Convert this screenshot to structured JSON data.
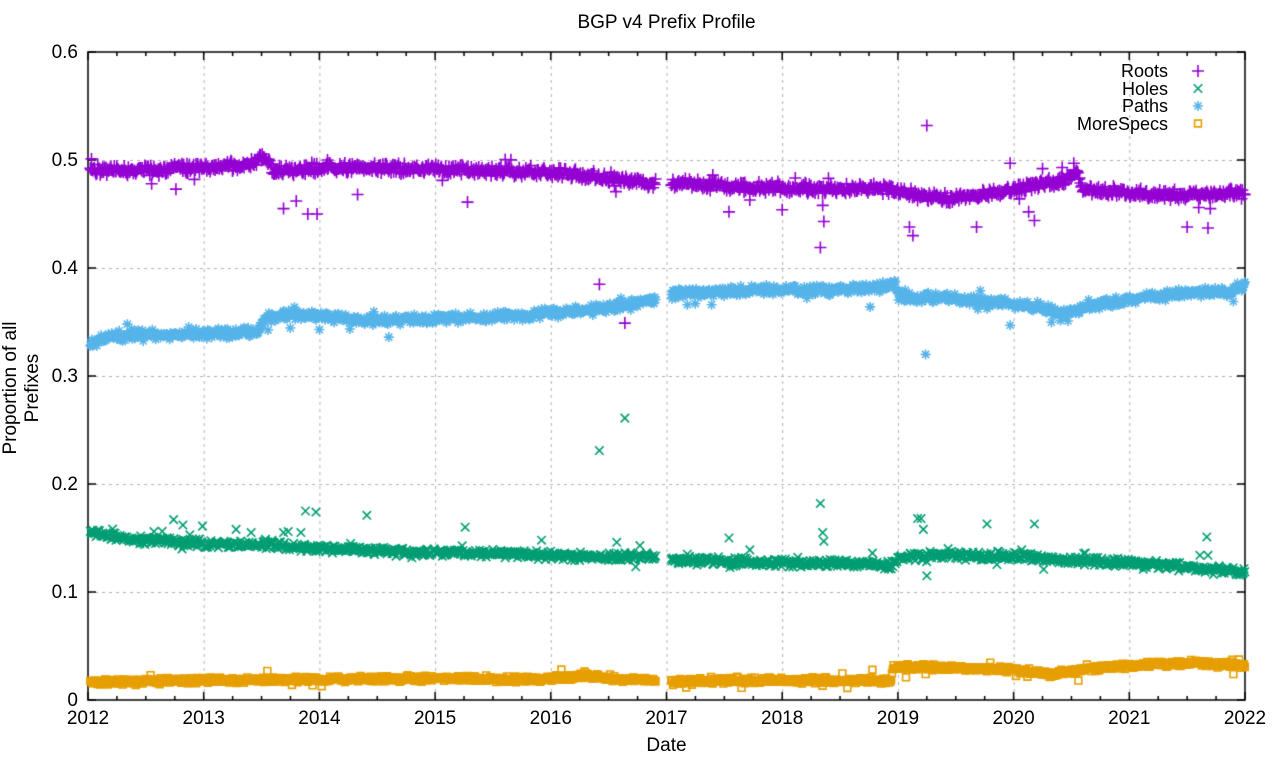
{
  "title": "BGP v4 Prefix Profile",
  "axes": {
    "xlabel": "Date",
    "ylabel": "Proportion of all Prefixes",
    "x_ticks": [
      "2012",
      "2013",
      "2014",
      "2015",
      "2016",
      "2017",
      "2018",
      "2019",
      "2020",
      "2021",
      "2022"
    ],
    "y_ticks": [
      "0",
      "0.1",
      "0.2",
      "0.3",
      "0.4",
      "0.5",
      "0.6"
    ]
  },
  "legend": {
    "position": "top-right",
    "entries": [
      {
        "label": "Roots",
        "marker": "plus",
        "color": "#9400d3"
      },
      {
        "label": "Holes",
        "marker": "cross",
        "color": "#009e73"
      },
      {
        "label": "Paths",
        "marker": "asterisk",
        "color": "#56b4e9"
      },
      {
        "label": "MoreSpecs",
        "marker": "open-square",
        "color": "#e69f00"
      }
    ]
  },
  "plot_style": {
    "background": "#ffffff",
    "border_color": "#000000",
    "grid_color": "#b3b3b3",
    "text_color": "#000000"
  },
  "chart_data": {
    "type": "scatter",
    "title": "BGP v4 Prefix Profile",
    "xlabel": "Date",
    "ylabel": "Proportion of all Prefixes",
    "xlim": [
      2012,
      2022
    ],
    "ylim": [
      0,
      0.6
    ],
    "x_tick_values": [
      2012,
      2013,
      2014,
      2015,
      2016,
      2017,
      2018,
      2019,
      2020,
      2021,
      2022
    ],
    "y_tick_values": [
      0,
      0.1,
      0.2,
      0.3,
      0.4,
      0.5,
      0.6
    ],
    "grid": true,
    "legend_position": "top-right",
    "data_gap_x": [
      2016.91,
      2017.04
    ],
    "representation": "Dense daily scatter bands summarized as trend keypoints [year, proportion] with jitter amplitude, plus individually-read outlier points [year, proportion].",
    "series": [
      {
        "name": "Roots",
        "marker": "plus",
        "color": "#9400d3",
        "jitter": 0.0028,
        "trend": [
          [
            2012.02,
            0.492
          ],
          [
            2012.3,
            0.49
          ],
          [
            2012.6,
            0.491
          ],
          [
            2012.9,
            0.493
          ],
          [
            2013.1,
            0.494
          ],
          [
            2013.3,
            0.494
          ],
          [
            2013.42,
            0.496
          ],
          [
            2013.5,
            0.503
          ],
          [
            2013.56,
            0.498
          ],
          [
            2013.62,
            0.49
          ],
          [
            2013.9,
            0.491
          ],
          [
            2014.2,
            0.493
          ],
          [
            2014.6,
            0.492
          ],
          [
            2015.0,
            0.492
          ],
          [
            2015.5,
            0.49
          ],
          [
            2016.0,
            0.488
          ],
          [
            2016.4,
            0.485
          ],
          [
            2016.7,
            0.481
          ],
          [
            2016.91,
            0.478
          ],
          [
            2017.04,
            0.479
          ],
          [
            2017.3,
            0.477
          ],
          [
            2017.7,
            0.475
          ],
          [
            2018.1,
            0.474
          ],
          [
            2018.5,
            0.473
          ],
          [
            2018.85,
            0.474
          ],
          [
            2019.0,
            0.47
          ],
          [
            2019.2,
            0.467
          ],
          [
            2019.45,
            0.464
          ],
          [
            2019.7,
            0.467
          ],
          [
            2019.95,
            0.471
          ],
          [
            2020.15,
            0.477
          ],
          [
            2020.35,
            0.479
          ],
          [
            2020.5,
            0.484
          ],
          [
            2020.55,
            0.489
          ],
          [
            2020.6,
            0.472
          ],
          [
            2020.9,
            0.47
          ],
          [
            2021.3,
            0.468
          ],
          [
            2021.7,
            0.468
          ],
          [
            2022.0,
            0.469
          ]
        ],
        "outliers": [
          [
            2012.03,
            0.501
          ],
          [
            2012.55,
            0.478
          ],
          [
            2012.76,
            0.473
          ],
          [
            2013.69,
            0.455
          ],
          [
            2013.8,
            0.462
          ],
          [
            2013.9,
            0.45
          ],
          [
            2013.98,
            0.45
          ],
          [
            2014.07,
            0.5
          ],
          [
            2014.33,
            0.468
          ],
          [
            2015.28,
            0.461
          ],
          [
            2016.42,
            0.385
          ],
          [
            2016.55,
            0.476
          ],
          [
            2016.64,
            0.349
          ],
          [
            2017.4,
            0.486
          ],
          [
            2017.54,
            0.452
          ],
          [
            2017.72,
            0.463
          ],
          [
            2018.0,
            0.454
          ],
          [
            2018.33,
            0.419
          ],
          [
            2018.35,
            0.458
          ],
          [
            2018.36,
            0.443
          ],
          [
            2018.4,
            0.483
          ],
          [
            2019.1,
            0.438
          ],
          [
            2019.13,
            0.43
          ],
          [
            2019.25,
            0.532
          ],
          [
            2019.68,
            0.438
          ],
          [
            2019.97,
            0.497
          ],
          [
            2020.05,
            0.464
          ],
          [
            2020.13,
            0.452
          ],
          [
            2020.18,
            0.444
          ],
          [
            2020.25,
            0.492
          ],
          [
            2020.42,
            0.493
          ],
          [
            2020.52,
            0.497
          ],
          [
            2021.5,
            0.438
          ],
          [
            2021.6,
            0.456
          ],
          [
            2021.68,
            0.437
          ],
          [
            2021.7,
            0.455
          ]
        ]
      },
      {
        "name": "Holes",
        "marker": "cross",
        "color": "#009e73",
        "jitter": 0.0022,
        "trend": [
          [
            2012.02,
            0.155
          ],
          [
            2012.2,
            0.151
          ],
          [
            2012.5,
            0.148
          ],
          [
            2012.8,
            0.146
          ],
          [
            2013.1,
            0.145
          ],
          [
            2013.35,
            0.144
          ],
          [
            2013.6,
            0.143
          ],
          [
            2013.85,
            0.141
          ],
          [
            2014.1,
            0.14
          ],
          [
            2014.5,
            0.138
          ],
          [
            2015.0,
            0.136
          ],
          [
            2015.5,
            0.136
          ],
          [
            2016.0,
            0.134
          ],
          [
            2016.5,
            0.132
          ],
          [
            2016.91,
            0.133
          ],
          [
            2017.04,
            0.13
          ],
          [
            2017.5,
            0.128
          ],
          [
            2018.0,
            0.127
          ],
          [
            2018.5,
            0.127
          ],
          [
            2018.95,
            0.125
          ],
          [
            2019.05,
            0.133
          ],
          [
            2019.4,
            0.134
          ],
          [
            2019.8,
            0.133
          ],
          [
            2020.1,
            0.133
          ],
          [
            2020.4,
            0.13
          ],
          [
            2020.8,
            0.128
          ],
          [
            2021.1,
            0.126
          ],
          [
            2021.5,
            0.123
          ],
          [
            2021.85,
            0.121
          ],
          [
            2021.93,
            0.118
          ],
          [
            2022.0,
            0.118
          ]
        ],
        "outliers": [
          [
            2012.57,
            0.156
          ],
          [
            2012.74,
            0.167
          ],
          [
            2012.82,
            0.162
          ],
          [
            2012.88,
            0.153
          ],
          [
            2012.99,
            0.161
          ],
          [
            2013.28,
            0.158
          ],
          [
            2013.41,
            0.155
          ],
          [
            2013.59,
            0.148
          ],
          [
            2013.69,
            0.155
          ],
          [
            2013.73,
            0.156
          ],
          [
            2013.84,
            0.155
          ],
          [
            2013.88,
            0.175
          ],
          [
            2013.97,
            0.174
          ],
          [
            2014.27,
            0.145
          ],
          [
            2014.41,
            0.171
          ],
          [
            2015.26,
            0.16
          ],
          [
            2015.92,
            0.148
          ],
          [
            2016.42,
            0.231
          ],
          [
            2016.57,
            0.146
          ],
          [
            2016.64,
            0.261
          ],
          [
            2016.77,
            0.143
          ],
          [
            2017.18,
            0.135
          ],
          [
            2017.54,
            0.15
          ],
          [
            2017.72,
            0.139
          ],
          [
            2018.33,
            0.182
          ],
          [
            2018.35,
            0.155
          ],
          [
            2018.36,
            0.147
          ],
          [
            2018.78,
            0.136
          ],
          [
            2019.17,
            0.168
          ],
          [
            2019.2,
            0.168
          ],
          [
            2019.22,
            0.158
          ],
          [
            2019.25,
            0.115
          ],
          [
            2019.77,
            0.163
          ],
          [
            2020.07,
            0.139
          ],
          [
            2020.18,
            0.163
          ],
          [
            2020.26,
            0.121
          ],
          [
            2020.62,
            0.136
          ],
          [
            2020.69,
            0.132
          ],
          [
            2021.12,
            0.121
          ],
          [
            2021.61,
            0.134
          ],
          [
            2021.67,
            0.151
          ],
          [
            2021.68,
            0.134
          ],
          [
            2021.95,
            0.116
          ],
          [
            2021.98,
            0.117
          ]
        ]
      },
      {
        "name": "Paths",
        "marker": "asterisk",
        "color": "#56b4e9",
        "jitter": 0.0026,
        "trend": [
          [
            2012.02,
            0.329
          ],
          [
            2012.15,
            0.336
          ],
          [
            2012.4,
            0.338
          ],
          [
            2013.0,
            0.339
          ],
          [
            2013.47,
            0.341
          ],
          [
            2013.53,
            0.353
          ],
          [
            2013.8,
            0.357
          ],
          [
            2014.1,
            0.354
          ],
          [
            2014.4,
            0.351
          ],
          [
            2014.8,
            0.353
          ],
          [
            2015.2,
            0.354
          ],
          [
            2015.7,
            0.356
          ],
          [
            2016.1,
            0.359
          ],
          [
            2016.5,
            0.363
          ],
          [
            2016.8,
            0.368
          ],
          [
            2016.91,
            0.372
          ],
          [
            2017.04,
            0.376
          ],
          [
            2017.4,
            0.378
          ],
          [
            2018.0,
            0.38
          ],
          [
            2018.4,
            0.379
          ],
          [
            2018.8,
            0.382
          ],
          [
            2018.97,
            0.385
          ],
          [
            2019.02,
            0.374
          ],
          [
            2019.4,
            0.372
          ],
          [
            2019.8,
            0.368
          ],
          [
            2020.1,
            0.365
          ],
          [
            2020.45,
            0.358
          ],
          [
            2020.6,
            0.364
          ],
          [
            2020.9,
            0.369
          ],
          [
            2021.2,
            0.374
          ],
          [
            2021.6,
            0.377
          ],
          [
            2021.88,
            0.378
          ],
          [
            2021.92,
            0.382
          ],
          [
            2022.0,
            0.382
          ]
        ],
        "outliers": [
          [
            2012.34,
            0.348
          ],
          [
            2014.0,
            0.343
          ],
          [
            2014.6,
            0.336
          ],
          [
            2017.18,
            0.366
          ],
          [
            2017.39,
            0.366
          ],
          [
            2018.76,
            0.364
          ],
          [
            2019.24,
            0.32
          ],
          [
            2019.97,
            0.347
          ],
          [
            2021.9,
            0.369
          ]
        ]
      },
      {
        "name": "MoreSpecs",
        "marker": "open-square",
        "color": "#e69f00",
        "jitter": 0.0016,
        "trend": [
          [
            2012.02,
            0.017
          ],
          [
            2012.5,
            0.017
          ],
          [
            2013.0,
            0.018
          ],
          [
            2014.0,
            0.019
          ],
          [
            2015.0,
            0.02
          ],
          [
            2015.8,
            0.019
          ],
          [
            2016.3,
            0.022
          ],
          [
            2016.5,
            0.02
          ],
          [
            2016.91,
            0.018
          ],
          [
            2017.04,
            0.017
          ],
          [
            2017.6,
            0.018
          ],
          [
            2018.2,
            0.018
          ],
          [
            2018.88,
            0.018
          ],
          [
            2018.94,
            0.018
          ],
          [
            2018.96,
            0.031
          ],
          [
            2019.3,
            0.03
          ],
          [
            2019.7,
            0.029
          ],
          [
            2020.0,
            0.028
          ],
          [
            2020.3,
            0.024
          ],
          [
            2020.6,
            0.028
          ],
          [
            2020.9,
            0.031
          ],
          [
            2021.2,
            0.033
          ],
          [
            2021.6,
            0.034
          ],
          [
            2021.9,
            0.033
          ],
          [
            2022.0,
            0.032
          ]
        ],
        "outliers": [
          [
            2013.55,
            0.027
          ],
          [
            2016.4,
            0.024
          ],
          [
            2018.78,
            0.028
          ],
          [
            2019.07,
            0.021
          ],
          [
            2019.24,
            0.024
          ],
          [
            2020.56,
            0.018
          ],
          [
            2021.9,
            0.024
          ]
        ]
      }
    ]
  }
}
